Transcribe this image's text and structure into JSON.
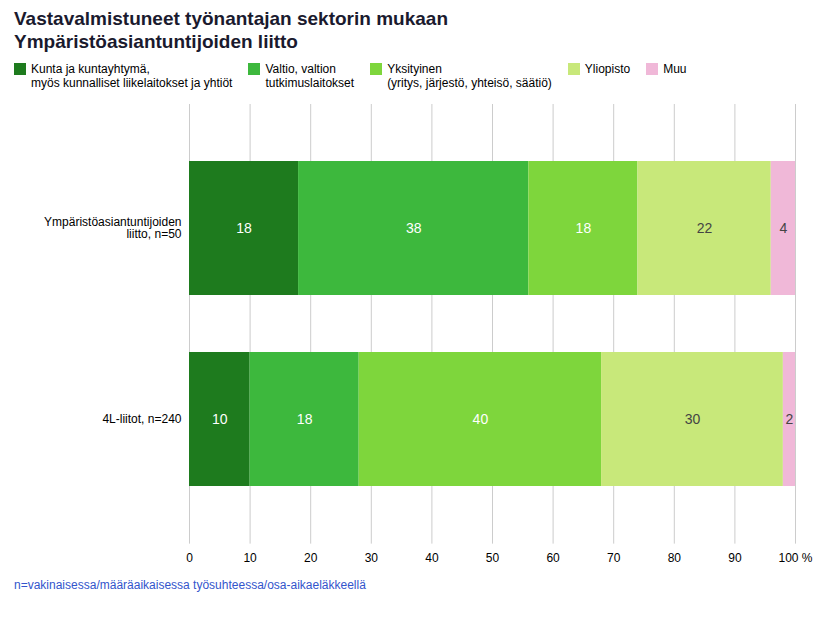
{
  "chart_data": {
    "type": "bar",
    "orientation": "horizontal",
    "stacked": true,
    "title": "Vastavalmistuneet työnantajan sektorin mukaan",
    "subtitle": "Ympäristöasiantuntijoiden liitto",
    "caption": "n=vakinaisessa/määräaikaisessa työsuhteessa/osa-aikaeläkkeellä",
    "categories": [
      "Ympäristöasiantuntijoiden\nliitto, n=50",
      "4L-liitot, n=240"
    ],
    "series": [
      {
        "name": "Kunta ja kuntayhtymä,\nmyös kunnalliset liikelaitokset ja yhtiöt",
        "color": "#1e7b1e",
        "values": [
          18,
          10
        ]
      },
      {
        "name": "Valtio, valtion\ntutkimuslaitokset",
        "color": "#3db83d",
        "values": [
          38,
          18
        ]
      },
      {
        "name": "Yksityinen\n(yritys, järjestö, yhteisö, säätiö)",
        "color": "#7ed63c",
        "values": [
          18,
          40
        ]
      },
      {
        "name": "Yliopisto",
        "color": "#c8e87a",
        "values": [
          22,
          30
        ]
      },
      {
        "name": "Muu",
        "color": "#f0b8d8",
        "values": [
          4,
          2
        ]
      }
    ],
    "xlim": [
      0,
      100
    ],
    "xticks": [
      0,
      10,
      20,
      30,
      40,
      50,
      60,
      70,
      80,
      90,
      {
        "value": 100,
        "label": "100 %"
      }
    ],
    "grid": true,
    "data_labels": true,
    "legend": "top"
  }
}
